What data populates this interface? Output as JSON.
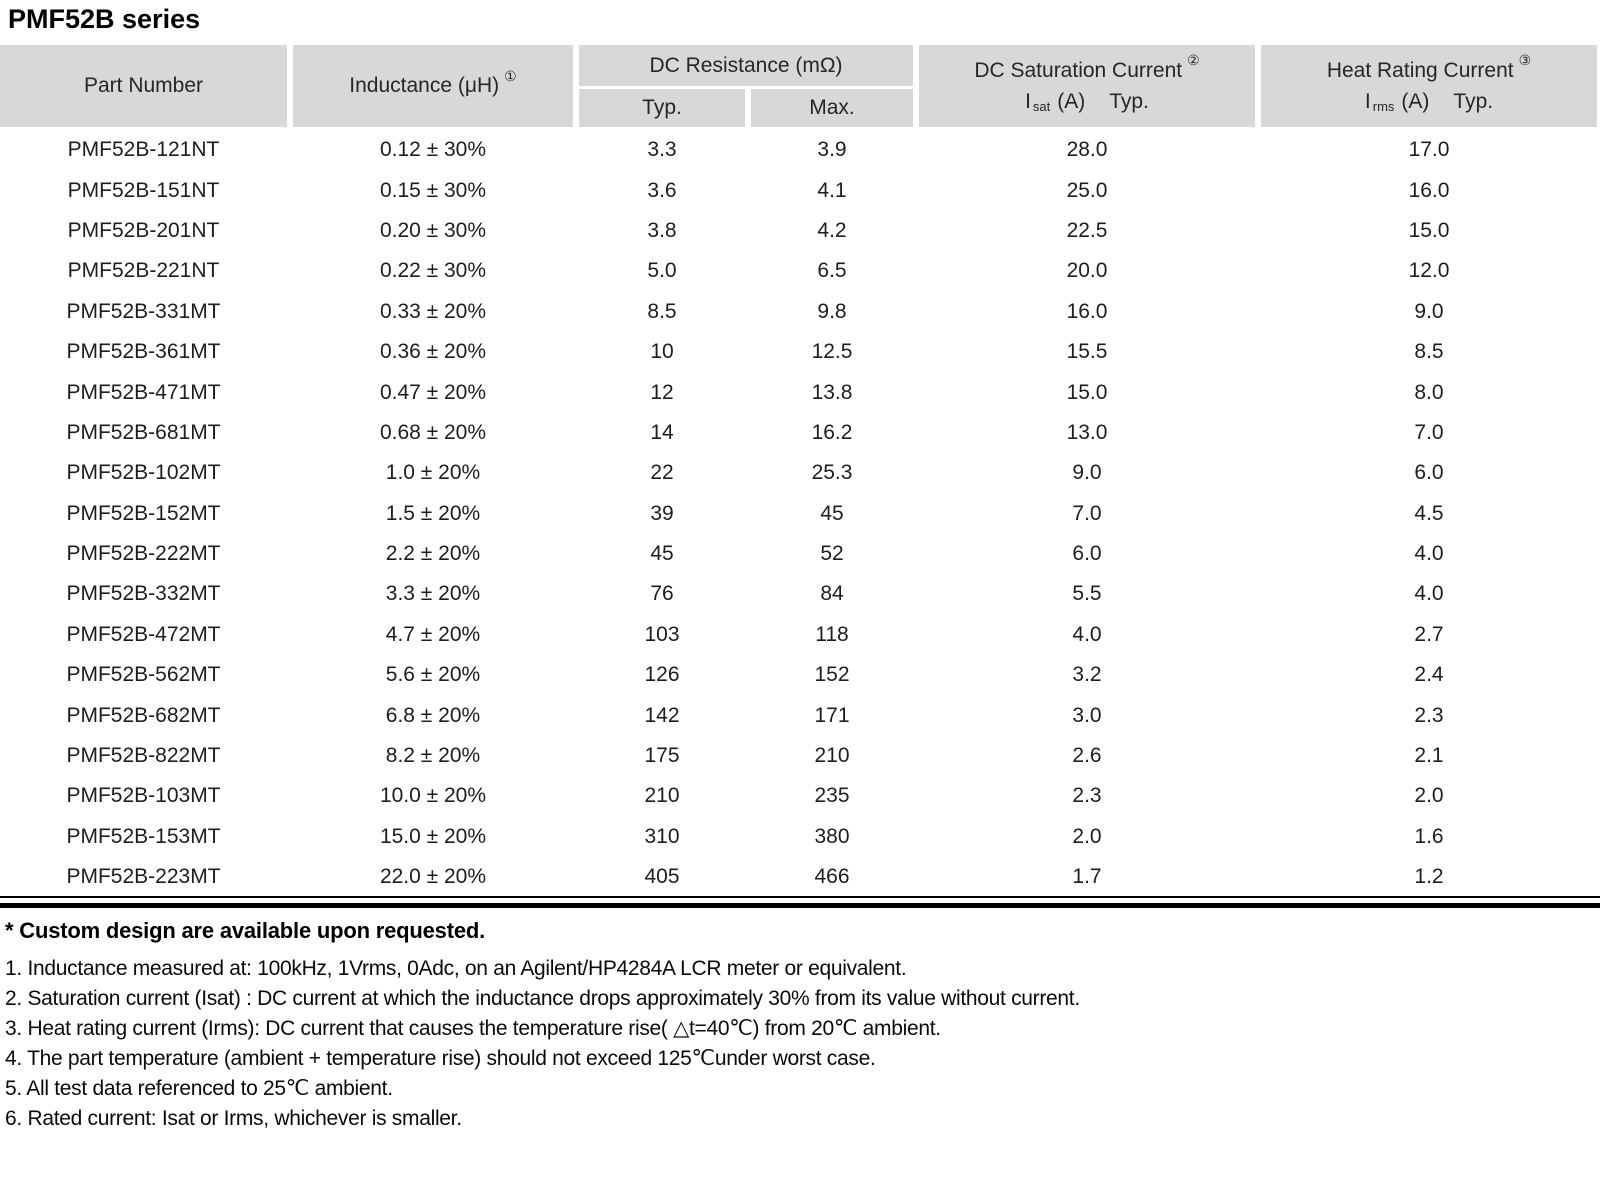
{
  "title": "PMF52B series",
  "colors": {
    "header_bg": "#d8d8d8",
    "rule": "#000000",
    "text": "#1d1d1d"
  },
  "table": {
    "headers": {
      "part_number": "Part Number",
      "inductance": "Inductance (μH)",
      "inductance_sup": "①",
      "dc_resistance": "DC Resistance (mΩ)",
      "typ": "Typ.",
      "max": "Max.",
      "saturation": "DC Saturation Current",
      "saturation_sup": "②",
      "saturation_i": "I",
      "saturation_i_sub": "sat",
      "saturation_unit": "(A)",
      "saturation_typ": "Typ.",
      "heat": "Heat Rating Current",
      "heat_sup": "③",
      "heat_i": "I",
      "heat_i_sub": "rms",
      "heat_unit": "(A)",
      "heat_typ": "Typ."
    },
    "rows": [
      [
        "PMF52B-121NT",
        "0.12 ± 30%",
        "3.3",
        "3.9",
        "28.0",
        "17.0"
      ],
      [
        "PMF52B-151NT",
        "0.15 ± 30%",
        "3.6",
        "4.1",
        "25.0",
        "16.0"
      ],
      [
        "PMF52B-201NT",
        "0.20 ± 30%",
        "3.8",
        "4.2",
        "22.5",
        "15.0"
      ],
      [
        "PMF52B-221NT",
        "0.22 ± 30%",
        "5.0",
        "6.5",
        "20.0",
        "12.0"
      ],
      [
        "PMF52B-331MT",
        "0.33 ± 20%",
        "8.5",
        "9.8",
        "16.0",
        "9.0"
      ],
      [
        "PMF52B-361MT",
        "0.36 ± 20%",
        "10",
        "12.5",
        "15.5",
        "8.5"
      ],
      [
        "PMF52B-471MT",
        "0.47 ± 20%",
        "12",
        "13.8",
        "15.0",
        "8.0"
      ],
      [
        "PMF52B-681MT",
        "0.68 ± 20%",
        "14",
        "16.2",
        "13.0",
        "7.0"
      ],
      [
        "PMF52B-102MT",
        "1.0 ± 20%",
        "22",
        "25.3",
        "9.0",
        "6.0"
      ],
      [
        "PMF52B-152MT",
        "1.5 ± 20%",
        "39",
        "45",
        "7.0",
        "4.5"
      ],
      [
        "PMF52B-222MT",
        "2.2 ± 20%",
        "45",
        "52",
        "6.0",
        "4.0"
      ],
      [
        "PMF52B-332MT",
        "3.3 ± 20%",
        "76",
        "84",
        "5.5",
        "4.0"
      ],
      [
        "PMF52B-472MT",
        "4.7 ± 20%",
        "103",
        "118",
        "4.0",
        "2.7"
      ],
      [
        "PMF52B-562MT",
        "5.6 ± 20%",
        "126",
        "152",
        "3.2",
        "2.4"
      ],
      [
        "PMF52B-682MT",
        "6.8 ± 20%",
        "142",
        "171",
        "3.0",
        "2.3"
      ],
      [
        "PMF52B-822MT",
        "8.2 ± 20%",
        "175",
        "210",
        "2.6",
        "2.1"
      ],
      [
        "PMF52B-103MT",
        "10.0 ± 20%",
        "210",
        "235",
        "2.3",
        "2.0"
      ],
      [
        "PMF52B-153MT",
        "15.0 ± 20%",
        "310",
        "380",
        "2.0",
        "1.6"
      ],
      [
        "PMF52B-223MT",
        "22.0 ± 20%",
        "405",
        "466",
        "1.7",
        "1.2"
      ]
    ]
  },
  "notes": {
    "custom": "* Custom design are available upon requested.",
    "items": [
      "1. Inductance measured at: 100kHz, 1Vrms, 0Adc, on an Agilent/HP4284A LCR meter or equivalent.",
      "2. Saturation current (Isat) : DC current at which the inductance drops approximately 30% from its value without current.",
      "3. Heat rating current (Irms): DC current that causes the temperature rise( △t=40℃) from 20℃ ambient.",
      "4. The part temperature (ambient + temperature rise) should not exceed 125℃under worst case.",
      "5. All test data referenced to 25℃ ambient.",
      "6. Rated current: Isat or Irms, whichever is smaller."
    ]
  }
}
